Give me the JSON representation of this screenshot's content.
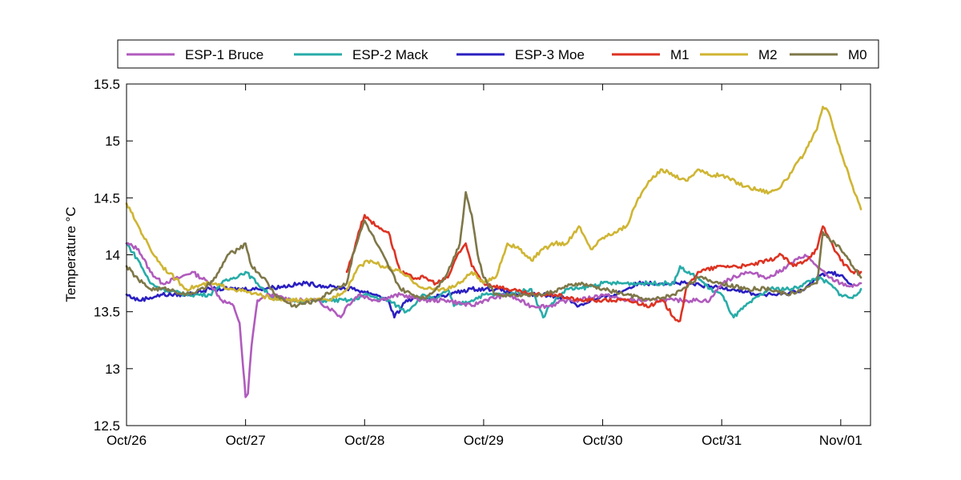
{
  "chart_data": {
    "type": "line",
    "title": "",
    "xlabel": "",
    "ylabel": "Temperature °C",
    "xlim": [
      "2011-10-26T00:00",
      "2011-11-01T06:00"
    ],
    "ylim": [
      12.5,
      15.5
    ],
    "x_ticks": [
      "Oct/26",
      "Oct/27",
      "Oct/28",
      "Oct/29",
      "Oct/30",
      "Oct/31",
      "Nov/01"
    ],
    "y_ticks": [
      "12.5",
      "13",
      "13.5",
      "14",
      "14.5",
      "15",
      "15.5"
    ],
    "grid": false,
    "legend_position": "top",
    "series": [
      {
        "name": "ESP-1 Bruce",
        "color": "#b05bbd",
        "x": [
          0,
          0.1,
          0.2,
          0.3,
          0.45,
          0.55,
          0.7,
          0.8,
          0.9,
          0.95,
          0.98,
          1.0,
          1.02,
          1.05,
          1.1,
          1.2,
          1.4,
          1.6,
          1.75,
          1.8,
          1.85,
          1.95,
          2.1,
          2.3,
          2.5,
          2.7,
          2.9,
          3.0,
          3.2,
          3.3,
          3.4,
          3.55,
          3.7,
          3.8,
          4.0,
          4.2,
          4.4,
          4.6,
          4.8,
          4.9,
          5.0,
          5.2,
          5.4,
          5.55,
          5.7,
          5.75,
          5.8,
          5.9,
          6.0,
          6.1,
          6.17
        ],
        "y": [
          14.1,
          14.05,
          13.85,
          13.75,
          13.8,
          13.85,
          13.75,
          13.6,
          13.55,
          13.4,
          13.0,
          12.75,
          12.78,
          13.2,
          13.6,
          13.65,
          13.6,
          13.6,
          13.5,
          13.45,
          13.55,
          13.65,
          13.6,
          13.65,
          13.6,
          13.6,
          13.55,
          13.6,
          13.65,
          13.6,
          13.55,
          13.55,
          13.6,
          13.6,
          13.65,
          13.6,
          13.6,
          13.6,
          13.6,
          13.6,
          13.75,
          13.85,
          13.8,
          13.9,
          14.0,
          13.95,
          13.9,
          13.8,
          13.75,
          13.72,
          13.75
        ]
      },
      {
        "name": "ESP-2 Mack",
        "color": "#27aca8",
        "x": [
          0,
          0.1,
          0.2,
          0.3,
          0.5,
          0.7,
          0.8,
          0.9,
          1.0,
          1.1,
          1.2,
          1.3,
          1.5,
          1.7,
          1.9,
          2.0,
          2.2,
          2.35,
          2.5,
          2.6,
          2.7,
          2.75,
          2.9,
          3.0,
          3.2,
          3.4,
          3.5,
          3.55,
          3.6,
          3.7,
          3.8,
          4.0,
          4.2,
          4.4,
          4.6,
          4.65,
          4.7,
          4.8,
          4.9,
          5.0,
          5.05,
          5.1,
          5.2,
          5.4,
          5.6,
          5.7,
          5.8,
          5.9,
          6.0,
          6.1,
          6.17
        ],
        "y": [
          14.1,
          13.95,
          13.75,
          13.7,
          13.65,
          13.65,
          13.75,
          13.8,
          13.85,
          13.75,
          13.65,
          13.6,
          13.6,
          13.6,
          13.6,
          13.65,
          13.6,
          13.5,
          13.65,
          13.6,
          13.7,
          13.55,
          13.6,
          13.65,
          13.65,
          13.7,
          13.45,
          13.55,
          13.6,
          13.7,
          13.7,
          13.75,
          13.75,
          13.75,
          13.75,
          13.9,
          13.85,
          13.8,
          13.7,
          13.65,
          13.55,
          13.45,
          13.55,
          13.7,
          13.7,
          13.75,
          13.8,
          13.75,
          13.65,
          13.62,
          13.7
        ]
      },
      {
        "name": "ESP-3 Moe",
        "color": "#2a1fc0",
        "x": [
          0,
          0.1,
          0.3,
          0.5,
          0.7,
          0.9,
          1.1,
          1.3,
          1.5,
          1.7,
          1.9,
          2.1,
          2.2,
          2.25,
          2.35,
          2.5,
          2.7,
          2.9,
          3.1,
          3.3,
          3.5,
          3.7,
          3.8,
          3.9,
          4.1,
          4.3,
          4.5,
          4.7,
          4.9,
          5.1,
          5.3,
          5.5,
          5.7,
          5.8,
          5.9,
          6.0,
          6.1
        ],
        "y": [
          13.65,
          13.6,
          13.65,
          13.65,
          13.7,
          13.7,
          13.7,
          13.72,
          13.75,
          13.72,
          13.7,
          13.65,
          13.6,
          13.45,
          13.6,
          13.62,
          13.65,
          13.7,
          13.7,
          13.65,
          13.65,
          13.62,
          13.55,
          13.6,
          13.65,
          13.75,
          13.75,
          13.75,
          13.72,
          13.7,
          13.65,
          13.65,
          13.7,
          13.8,
          13.85,
          13.82,
          13.72
        ]
      },
      {
        "name": "M1",
        "color": "#dd3322",
        "x": [
          1.85,
          1.9,
          1.95,
          2.0,
          2.05,
          2.1,
          2.2,
          2.3,
          2.4,
          2.5,
          2.6,
          2.7,
          2.78,
          2.85,
          2.9,
          3.0,
          3.2,
          3.4,
          3.6,
          3.8,
          4.0,
          4.2,
          4.4,
          4.5,
          4.6,
          4.65,
          4.7,
          4.8,
          5.0,
          5.2,
          5.4,
          5.5,
          5.6,
          5.7,
          5.8,
          5.85,
          5.9,
          6.0,
          6.1,
          6.17
        ],
        "y": [
          13.85,
          14.0,
          14.2,
          14.35,
          14.3,
          14.25,
          14.2,
          13.85,
          13.8,
          13.8,
          13.75,
          13.8,
          14.0,
          14.1,
          13.9,
          13.75,
          13.7,
          13.65,
          13.65,
          13.6,
          13.6,
          13.6,
          13.55,
          13.6,
          13.45,
          13.42,
          13.7,
          13.85,
          13.9,
          13.9,
          13.95,
          14.0,
          13.9,
          13.95,
          14.05,
          14.25,
          14.15,
          13.95,
          13.85,
          13.85
        ]
      },
      {
        "name": "M2",
        "color": "#cfb532",
        "x": [
          0,
          0.1,
          0.2,
          0.3,
          0.5,
          0.7,
          0.9,
          1.1,
          1.3,
          1.5,
          1.7,
          1.85,
          1.95,
          2.05,
          2.15,
          2.3,
          2.5,
          2.7,
          2.8,
          2.9,
          3.0,
          3.1,
          3.2,
          3.3,
          3.4,
          3.5,
          3.6,
          3.7,
          3.8,
          3.9,
          4.0,
          4.1,
          4.2,
          4.3,
          4.4,
          4.5,
          4.6,
          4.7,
          4.8,
          4.9,
          5.0,
          5.2,
          5.4,
          5.5,
          5.6,
          5.7,
          5.8,
          5.85,
          5.9,
          6.0,
          6.1,
          6.17
        ],
        "y": [
          14.45,
          14.25,
          14.05,
          13.9,
          13.7,
          13.75,
          13.7,
          13.65,
          13.6,
          13.6,
          13.6,
          13.7,
          13.9,
          13.95,
          13.9,
          13.85,
          13.7,
          13.7,
          13.75,
          13.85,
          13.75,
          13.8,
          14.1,
          14.05,
          13.95,
          14.05,
          14.1,
          14.1,
          14.25,
          14.05,
          14.15,
          14.2,
          14.25,
          14.5,
          14.65,
          14.75,
          14.7,
          14.65,
          14.75,
          14.7,
          14.7,
          14.6,
          14.55,
          14.6,
          14.75,
          14.9,
          15.1,
          15.3,
          15.25,
          14.9,
          14.6,
          14.4
        ]
      },
      {
        "name": "M0",
        "color": "#7e7748",
        "x": [
          0,
          0.1,
          0.2,
          0.35,
          0.5,
          0.65,
          0.75,
          0.85,
          0.95,
          1.0,
          1.05,
          1.15,
          1.25,
          1.4,
          1.6,
          1.75,
          1.85,
          1.9,
          1.95,
          2.0,
          2.05,
          2.1,
          2.2,
          2.3,
          2.4,
          2.5,
          2.6,
          2.7,
          2.8,
          2.85,
          2.9,
          2.95,
          3.0,
          3.1,
          3.3,
          3.5,
          3.7,
          3.8,
          4.0,
          4.2,
          4.4,
          4.6,
          4.8,
          5.0,
          5.2,
          5.4,
          5.55,
          5.7,
          5.8,
          5.85,
          5.9,
          6.0,
          6.1,
          6.17
        ],
        "y": [
          13.9,
          13.78,
          13.7,
          13.7,
          13.65,
          13.7,
          13.8,
          14.0,
          14.05,
          14.1,
          13.9,
          13.8,
          13.65,
          13.55,
          13.6,
          13.7,
          13.75,
          14.0,
          14.15,
          14.3,
          14.2,
          14.1,
          13.9,
          13.7,
          13.65,
          13.62,
          13.7,
          13.85,
          14.1,
          14.55,
          14.35,
          14.0,
          13.8,
          13.65,
          13.65,
          13.65,
          13.72,
          13.75,
          13.7,
          13.65,
          13.6,
          13.65,
          13.8,
          13.75,
          13.7,
          13.7,
          13.65,
          13.7,
          13.75,
          14.2,
          14.15,
          14.05,
          13.9,
          13.8
        ]
      }
    ]
  }
}
